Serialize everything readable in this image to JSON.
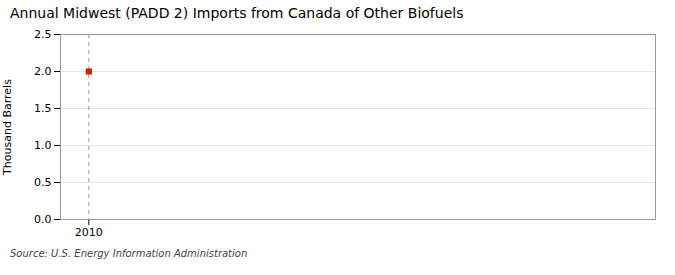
{
  "chart_data": {
    "type": "scatter",
    "title": "Annual Midwest (PADD 2) Imports from Canada of Other Biofuels",
    "ylabel": "Thousand Barrels",
    "source": "Source: U.S. Energy Information Administration",
    "x": [
      2010
    ],
    "values": [
      2.0
    ],
    "color": "#cc2200",
    "marker": "square",
    "xlim": [
      2009.4,
      2022
    ],
    "xticks": [
      2010
    ],
    "ylim": [
      0.0,
      2.5
    ],
    "yticks": [
      {
        "value": 0.0,
        "label": "0.0"
      },
      0.5,
      {
        "value": 1.0,
        "label": "1.0"
      },
      1.5,
      {
        "value": 2.0,
        "label": "2.0"
      },
      2.5
    ],
    "grid": true,
    "vlines": [
      {
        "x": 2010,
        "color": "#8899bb",
        "line_style": "dashed"
      }
    ]
  }
}
